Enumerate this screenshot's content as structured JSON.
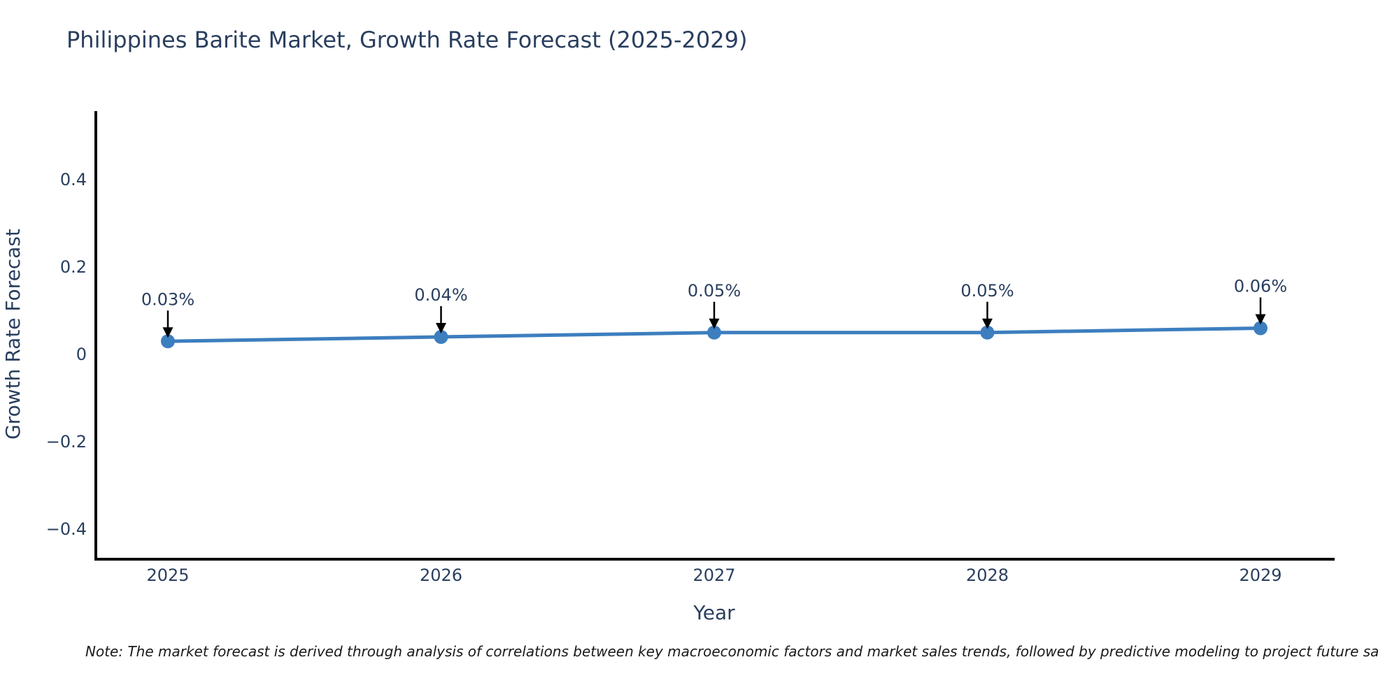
{
  "chart_data": {
    "type": "line",
    "title": "Philippines Barite Market, Growth Rate Forecast (2025-2029)",
    "x": [
      2025,
      2026,
      2027,
      2028,
      2029
    ],
    "xtick_labels": [
      "2025",
      "2026",
      "2027",
      "2028",
      "2029"
    ],
    "y": [
      0.03,
      0.04,
      0.05,
      0.05,
      0.06
    ],
    "point_labels": [
      "0.03%",
      "0.04%",
      "0.05%",
      "0.05%",
      "0.06%"
    ],
    "xlabel": "Year",
    "ylabel": "Growth Rate Forecast",
    "yticks": [
      0.4,
      0.2,
      0,
      -0.2,
      -0.4
    ],
    "ytick_labels": [
      "0.4",
      "0.2",
      "0",
      "−0.2",
      "−0.4"
    ],
    "ylim": [
      -0.47,
      0.56
    ],
    "grid": false,
    "legend": "none",
    "colors": {
      "line": "#3d7ebf",
      "marker": "#3d7ebf",
      "arrow": "#000000",
      "axis": "#000000",
      "text": "#2a3f5f"
    }
  },
  "note": "Note: The market forecast is derived through analysis of correlations between key macroeconomic factors and market sales trends, followed by predictive modeling to project future sa"
}
